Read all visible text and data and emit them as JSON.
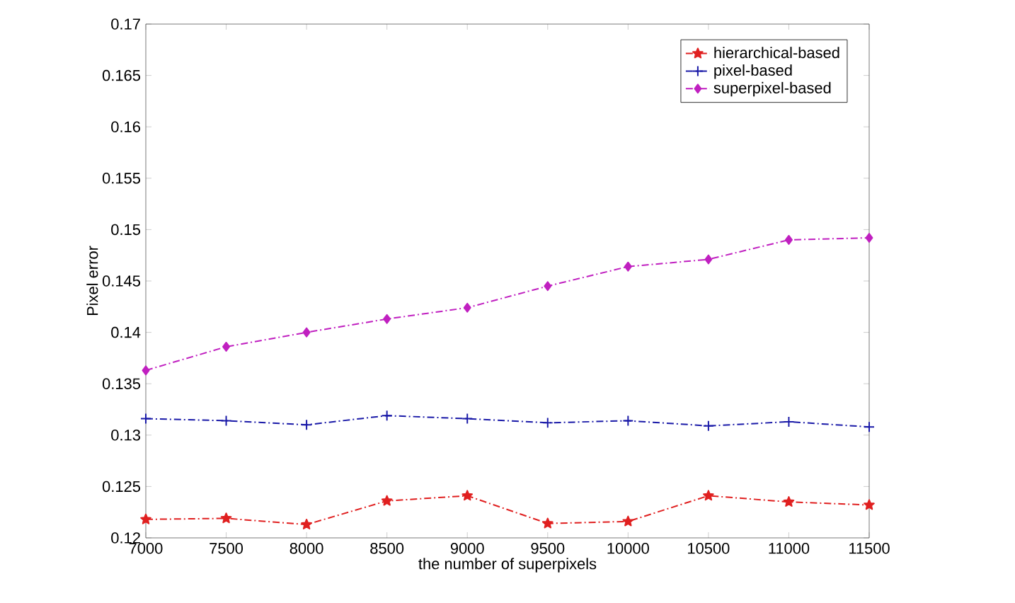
{
  "chart_data": {
    "type": "line",
    "xlabel": "the number of superpixels",
    "ylabel": "Pixel error",
    "x": [
      7000,
      7500,
      8000,
      8500,
      9000,
      9500,
      10000,
      10500,
      11000,
      11500
    ],
    "series": [
      {
        "name": "hierarchical-based",
        "color": "#e02020",
        "marker": "star",
        "line_style": "dashed",
        "values": [
          0.1218,
          0.1219,
          0.1213,
          0.1236,
          0.1241,
          0.1214,
          0.1216,
          0.1241,
          0.1235,
          0.1232
        ]
      },
      {
        "name": "pixel-based",
        "color": "#1a1aa8",
        "marker": "cross",
        "line_style": "dashed",
        "values": [
          0.1316,
          0.1314,
          0.131,
          0.1319,
          0.1316,
          0.1312,
          0.1314,
          0.1309,
          0.1313,
          0.1308
        ]
      },
      {
        "name": "superpixel-based",
        "color": "#c020c0",
        "marker": "diamond",
        "line_style": "dashed",
        "values": [
          0.1363,
          0.1386,
          0.14,
          0.1413,
          0.1424,
          0.1445,
          0.1464,
          0.1471,
          0.149,
          0.1492
        ]
      }
    ],
    "xlim": [
      7000,
      11500
    ],
    "xticks": [
      7000,
      7500,
      8000,
      8500,
      9000,
      9500,
      10000,
      10500,
      11000,
      11500
    ],
    "ylim": [
      0.12,
      0.17
    ],
    "yticks": [
      0.12,
      0.125,
      0.13,
      0.135,
      0.14,
      0.145,
      0.15,
      0.155,
      0.16,
      0.165,
      0.17
    ],
    "legend": "top right",
    "grid": false
  }
}
